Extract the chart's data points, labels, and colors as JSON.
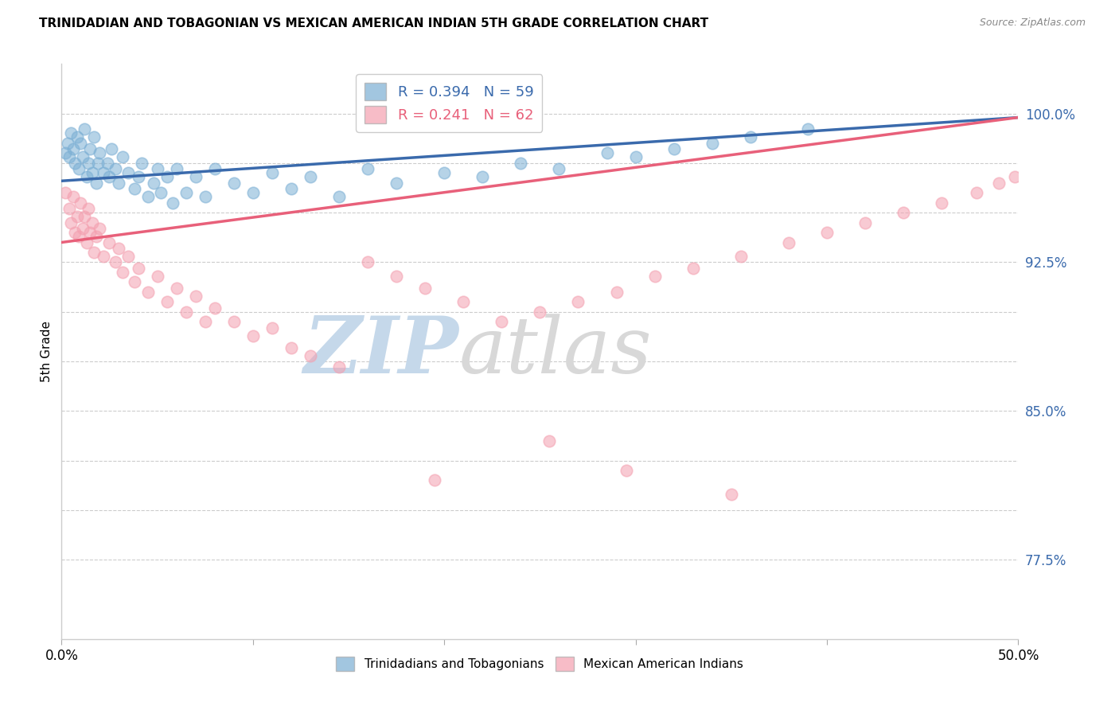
{
  "title": "TRINIDADIAN AND TOBAGONIAN VS MEXICAN AMERICAN INDIAN 5TH GRADE CORRELATION CHART",
  "source": "Source: ZipAtlas.com",
  "ylabel": "5th Grade",
  "xmin": 0.0,
  "xmax": 0.5,
  "ymin": 0.735,
  "ymax": 1.025,
  "ytick_positions_shown": [
    0.775,
    0.85,
    0.925,
    1.0
  ],
  "ytick_labels_shown": [
    "77.5%",
    "85.0%",
    "92.5%",
    "100.0%"
  ],
  "grid_yticks": [
    0.775,
    0.8,
    0.825,
    0.85,
    0.875,
    0.9,
    0.925,
    0.95,
    0.975,
    1.0
  ],
  "blue_R": 0.394,
  "blue_N": 59,
  "pink_R": 0.241,
  "pink_N": 62,
  "blue_color": "#7BAFD4",
  "pink_color": "#F4A0B0",
  "blue_line_color": "#3A6AAC",
  "pink_line_color": "#E8607A",
  "blue_scatter_x": [
    0.002,
    0.003,
    0.004,
    0.005,
    0.006,
    0.007,
    0.008,
    0.009,
    0.01,
    0.011,
    0.012,
    0.013,
    0.014,
    0.015,
    0.016,
    0.017,
    0.018,
    0.019,
    0.02,
    0.022,
    0.024,
    0.025,
    0.026,
    0.028,
    0.03,
    0.032,
    0.035,
    0.038,
    0.04,
    0.042,
    0.045,
    0.048,
    0.05,
    0.052,
    0.055,
    0.058,
    0.06,
    0.065,
    0.07,
    0.075,
    0.08,
    0.09,
    0.1,
    0.11,
    0.12,
    0.13,
    0.145,
    0.16,
    0.175,
    0.2,
    0.22,
    0.24,
    0.26,
    0.285,
    0.3,
    0.32,
    0.34,
    0.36,
    0.39
  ],
  "blue_scatter_y": [
    0.98,
    0.985,
    0.978,
    0.99,
    0.982,
    0.975,
    0.988,
    0.972,
    0.985,
    0.978,
    0.992,
    0.968,
    0.975,
    0.982,
    0.97,
    0.988,
    0.965,
    0.975,
    0.98,
    0.97,
    0.975,
    0.968,
    0.982,
    0.972,
    0.965,
    0.978,
    0.97,
    0.962,
    0.968,
    0.975,
    0.958,
    0.965,
    0.972,
    0.96,
    0.968,
    0.955,
    0.972,
    0.96,
    0.968,
    0.958,
    0.972,
    0.965,
    0.96,
    0.97,
    0.962,
    0.968,
    0.958,
    0.972,
    0.965,
    0.97,
    0.968,
    0.975,
    0.972,
    0.98,
    0.978,
    0.982,
    0.985,
    0.988,
    0.992
  ],
  "pink_scatter_x": [
    0.002,
    0.004,
    0.005,
    0.006,
    0.007,
    0.008,
    0.009,
    0.01,
    0.011,
    0.012,
    0.013,
    0.014,
    0.015,
    0.016,
    0.017,
    0.018,
    0.02,
    0.022,
    0.025,
    0.028,
    0.03,
    0.032,
    0.035,
    0.038,
    0.04,
    0.045,
    0.05,
    0.055,
    0.06,
    0.065,
    0.07,
    0.075,
    0.08,
    0.09,
    0.1,
    0.11,
    0.12,
    0.13,
    0.145,
    0.16,
    0.175,
    0.19,
    0.21,
    0.23,
    0.25,
    0.27,
    0.29,
    0.31,
    0.33,
    0.355,
    0.38,
    0.4,
    0.42,
    0.44,
    0.46,
    0.478,
    0.49,
    0.498,
    0.35,
    0.295,
    0.255,
    0.195
  ],
  "pink_scatter_y": [
    0.96,
    0.952,
    0.945,
    0.958,
    0.94,
    0.948,
    0.938,
    0.955,
    0.942,
    0.948,
    0.935,
    0.952,
    0.94,
    0.945,
    0.93,
    0.938,
    0.942,
    0.928,
    0.935,
    0.925,
    0.932,
    0.92,
    0.928,
    0.915,
    0.922,
    0.91,
    0.918,
    0.905,
    0.912,
    0.9,
    0.908,
    0.895,
    0.902,
    0.895,
    0.888,
    0.892,
    0.882,
    0.878,
    0.872,
    0.925,
    0.918,
    0.912,
    0.905,
    0.895,
    0.9,
    0.905,
    0.91,
    0.918,
    0.922,
    0.928,
    0.935,
    0.94,
    0.945,
    0.95,
    0.955,
    0.96,
    0.965,
    0.968,
    0.808,
    0.82,
    0.835,
    0.815
  ]
}
